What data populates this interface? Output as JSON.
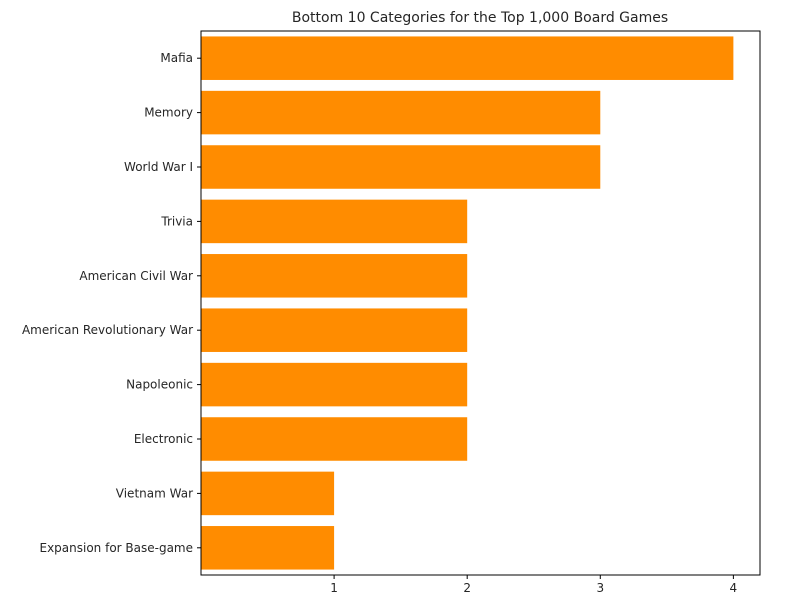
{
  "chart_data": {
    "type": "bar",
    "orientation": "horizontal",
    "title": "Bottom 10 Categories for the Top 1,000 Board Games",
    "xlabel": "",
    "ylabel": "",
    "categories": [
      "Mafia",
      "Memory",
      "World War I",
      "Trivia",
      "American Civil War",
      "American Revolutionary War",
      "Napoleonic",
      "Electronic",
      "Vietnam War",
      "Expansion for Base-game"
    ],
    "values": [
      4,
      3,
      3,
      2,
      2,
      2,
      2,
      2,
      1,
      1
    ],
    "xlim": [
      0,
      4.2
    ],
    "xticks": [
      1,
      2,
      3,
      4
    ],
    "grid": false,
    "legend": "none",
    "colors": {
      "bar": "#ff8c00",
      "axis": "#000000",
      "text": "#262626"
    }
  }
}
